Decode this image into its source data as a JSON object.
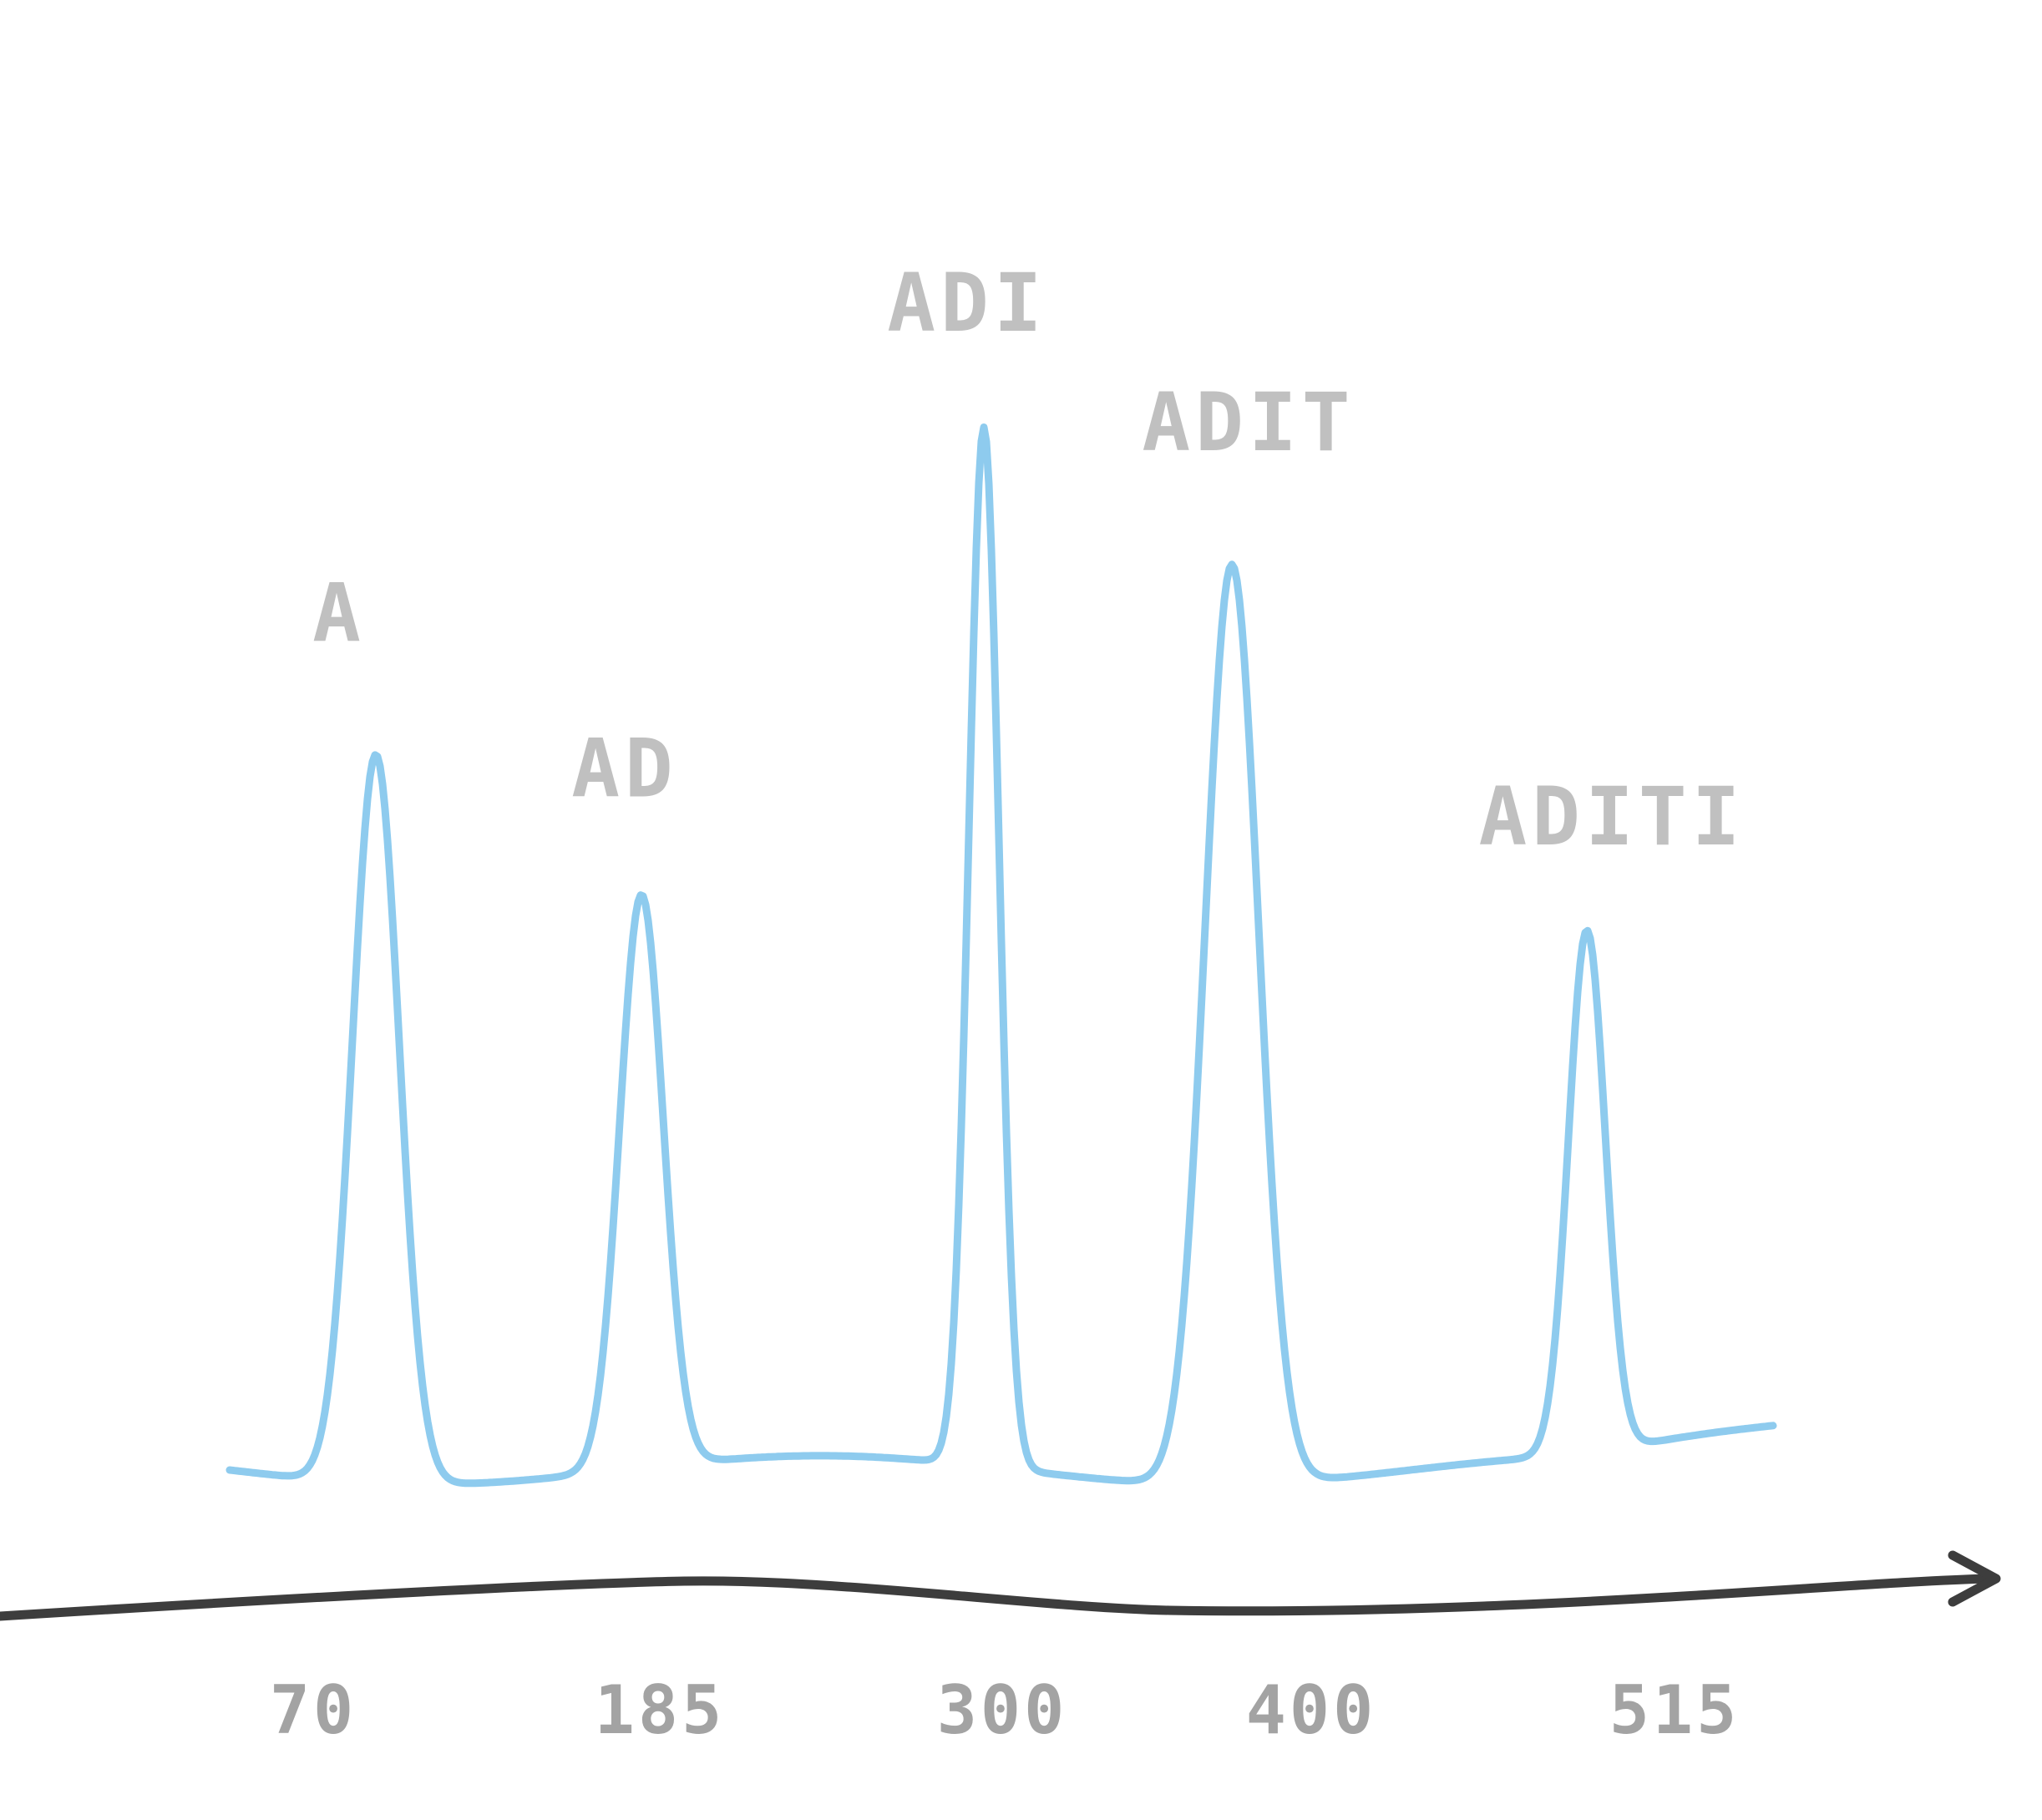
{
  "chart_data": {
    "type": "line",
    "title": "",
    "xlabel": "",
    "ylabel": "",
    "x_ticks": [
      "70",
      "185",
      "300",
      "400",
      "515"
    ],
    "peaks": [
      {
        "x": 70,
        "label": "A",
        "relative_height": 0.61
      },
      {
        "x": 185,
        "label": "AD",
        "relative_height": 0.48
      },
      {
        "x": 300,
        "label": "ADI",
        "relative_height": 0.87
      },
      {
        "x": 400,
        "label": "ADIT",
        "relative_height": 0.77
      },
      {
        "x": 515,
        "label": "ADITI",
        "relative_height": 0.44
      }
    ],
    "grid": false,
    "legend": "none",
    "colors": {
      "trace": "#8ecbee",
      "axis": "#3d3d3d",
      "peak_label": "#c0c0c0",
      "tick_label": "#a3a3a3"
    }
  }
}
